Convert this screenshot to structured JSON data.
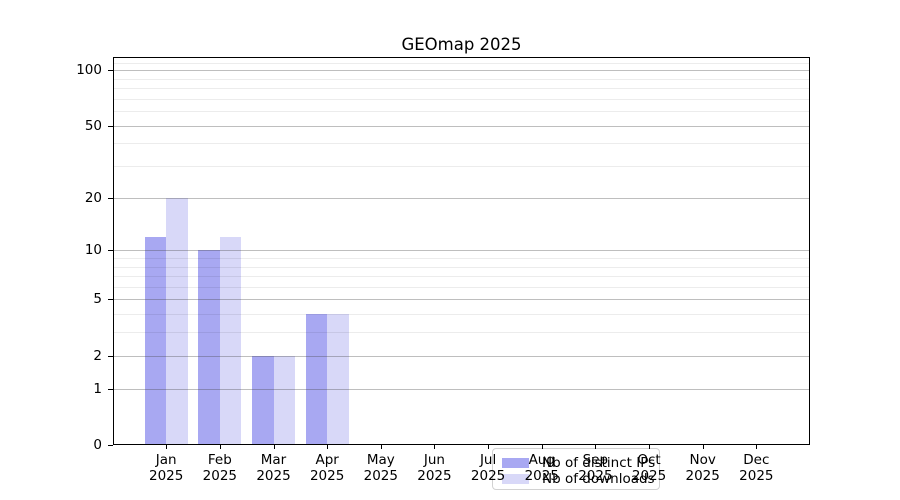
{
  "title": "GEOmap 2025",
  "chart_data": {
    "type": "bar",
    "title": "GEOmap 2025",
    "categories": [
      "Jan 2025",
      "Feb 2025",
      "Mar 2025",
      "Apr 2025",
      "May 2025",
      "Jun 2025",
      "Jul 2025",
      "Aug 2025",
      "Sep 2025",
      "Oct 2025",
      "Nov 2025",
      "Dec 2025"
    ],
    "category_lines": [
      {
        "month": "Jan",
        "year": "2025"
      },
      {
        "month": "Feb",
        "year": "2025"
      },
      {
        "month": "Mar",
        "year": "2025"
      },
      {
        "month": "Apr",
        "year": "2025"
      },
      {
        "month": "May",
        "year": "2025"
      },
      {
        "month": "Jun",
        "year": "2025"
      },
      {
        "month": "Jul",
        "year": "2025"
      },
      {
        "month": "Aug",
        "year": "2025"
      },
      {
        "month": "Sep",
        "year": "2025"
      },
      {
        "month": "Oct",
        "year": "2025"
      },
      {
        "month": "Nov",
        "year": "2025"
      },
      {
        "month": "Dec",
        "year": "2025"
      }
    ],
    "series": [
      {
        "name": "Nb of distinct IPs",
        "color": "#a8a8f2",
        "values": [
          12,
          10,
          2,
          4,
          0,
          0,
          0,
          0,
          0,
          0,
          0,
          0
        ]
      },
      {
        "name": "Nb of downloads",
        "color": "#d8d8f8",
        "values": [
          20,
          12,
          2,
          4,
          0,
          0,
          0,
          0,
          0,
          0,
          0,
          0
        ]
      }
    ],
    "xlabel": "",
    "ylabel": "",
    "y_axis": {
      "scale": "log1p",
      "major_ticks": [
        0,
        1,
        2,
        5,
        10,
        20,
        50,
        100
      ],
      "minor_ticks": [
        3,
        4,
        6,
        7,
        8,
        9,
        30,
        40,
        60,
        70,
        80,
        90,
        110
      ],
      "ylim": [
        0,
        118
      ]
    },
    "grid": {
      "horizontal": true,
      "vertical": false,
      "grid_above_bars": true
    },
    "legend": {
      "position": "inside-lower-center",
      "border_color": "#d2d2d2"
    }
  }
}
